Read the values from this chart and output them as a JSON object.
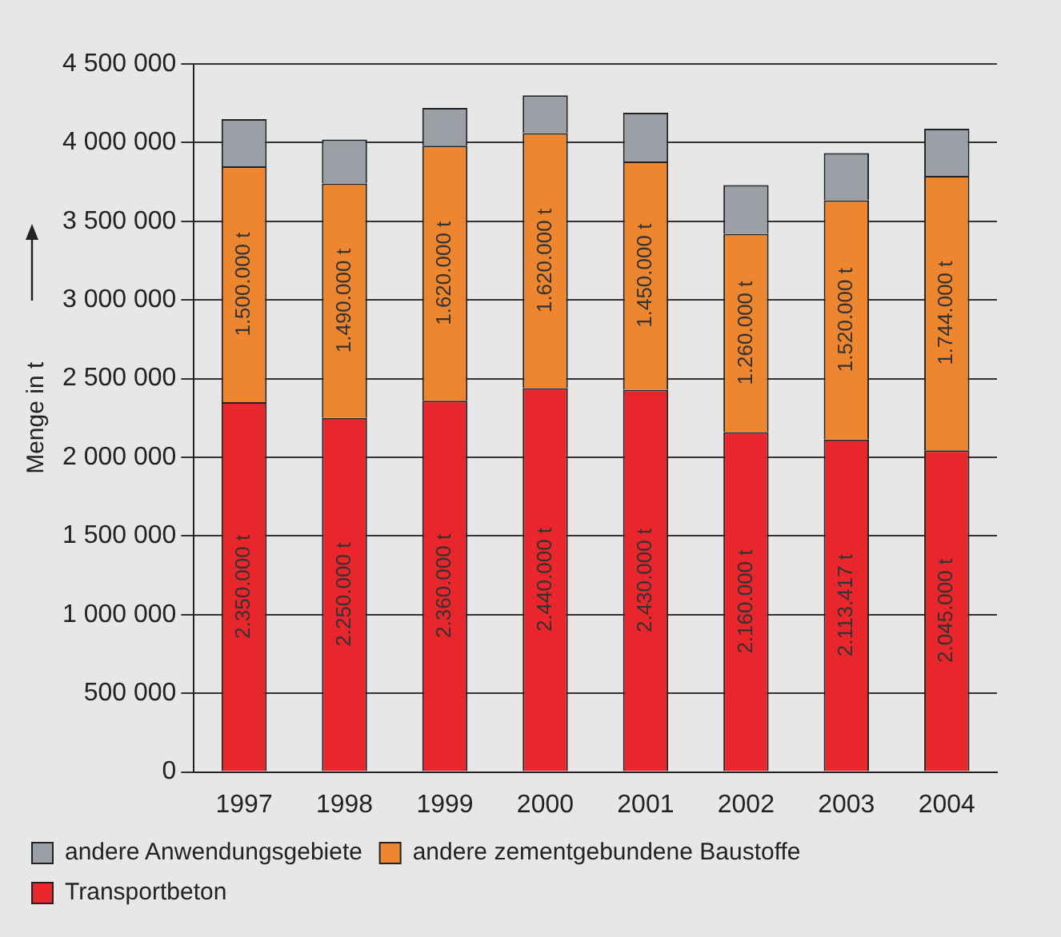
{
  "chart_data": {
    "type": "bar",
    "stacked": true,
    "ylabel": "Menge in t",
    "categories": [
      "1997",
      "1998",
      "1999",
      "2000",
      "2001",
      "2002",
      "2003",
      "2004"
    ],
    "series": [
      {
        "name": "Transportbeton",
        "color": "#e8262b",
        "values": [
          2350000,
          2250000,
          2360000,
          2440000,
          2430000,
          2160000,
          2113417,
          2045000
        ],
        "value_labels": [
          "2.350.000 t",
          "2.250.000 t",
          "2.360.000 t",
          "2.440.000 t",
          "2.430.000 t",
          "2.160.000 t",
          "2.113.417 t",
          "2.045.000 t"
        ]
      },
      {
        "name": "andere zementgebundene Baustoffe",
        "color": "#ee8630",
        "values": [
          1500000,
          1490000,
          1620000,
          1620000,
          1450000,
          1260000,
          1520000,
          1744000
        ],
        "value_labels": [
          "1.500.000 t",
          "1.490.000 t",
          "1.620.000 t",
          "1.620.000 t",
          "1.450.000 t",
          "1.260.000 t",
          "1.520.000 t",
          "1.744.000 t"
        ]
      },
      {
        "name": "andere Anwendungsgebiete",
        "color": "#9aa0a6",
        "values": [
          300000,
          280000,
          240000,
          240000,
          310000,
          310000,
          300000,
          300000
        ]
      }
    ],
    "ylim": [
      0,
      4500000
    ],
    "yticks": [
      0,
      {
        "value": 500000,
        "label": "500 000"
      },
      {
        "value": 1000000,
        "label": "1 000 000"
      },
      {
        "value": 1500000,
        "label": "1 500 000"
      },
      {
        "value": 2000000,
        "label": "2 000 000"
      },
      {
        "value": 2500000,
        "label": "2 500 000"
      },
      {
        "value": 3000000,
        "label": "3 000 000"
      },
      {
        "value": 3500000,
        "label": "3 500 000"
      },
      {
        "value": 4000000,
        "label": "4 000 000"
      },
      {
        "value": 4500000,
        "label": "4 500 000"
      }
    ],
    "grid": "y",
    "legend": "bottom"
  }
}
